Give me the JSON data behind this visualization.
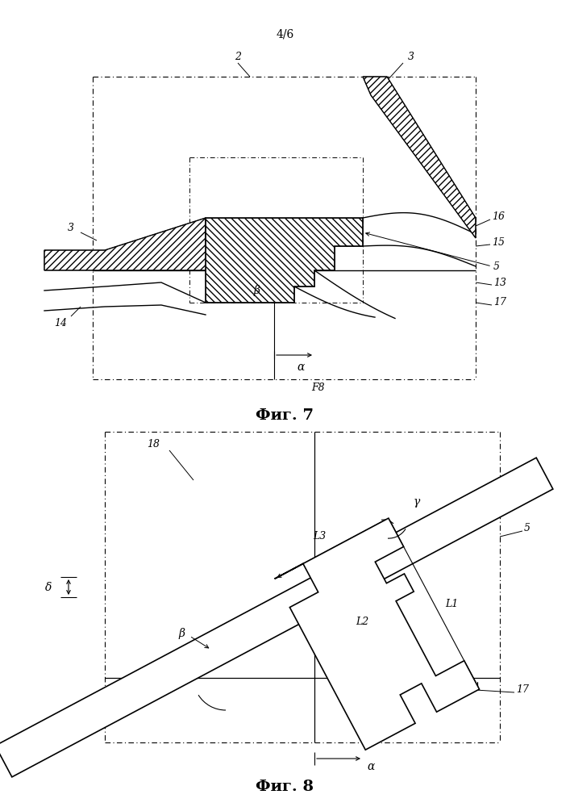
{
  "page_label": "4/6",
  "fig7_label": "Фиг. 7",
  "fig8_label": "Фиг. 8",
  "bg_color": "#ffffff"
}
